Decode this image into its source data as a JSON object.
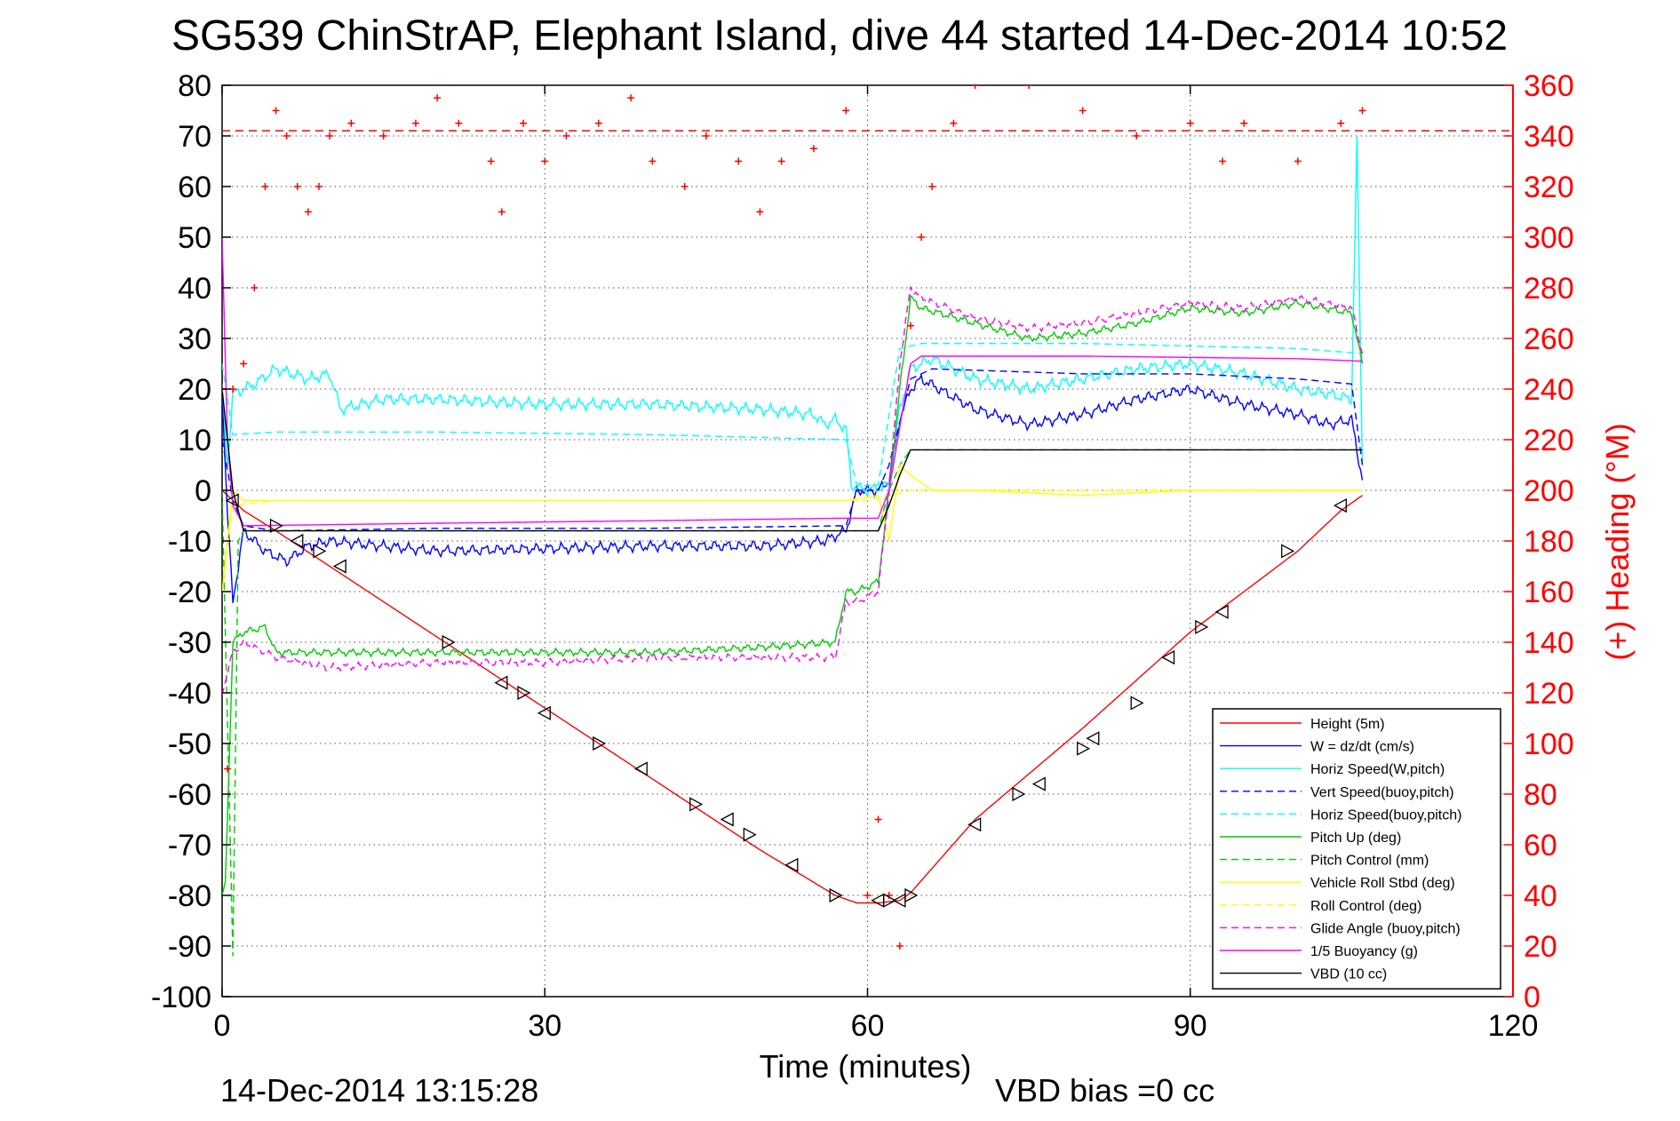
{
  "chart_data": {
    "type": "line",
    "title": "SG539 ChinStrAP, Elephant Island, dive 44 started 14-Dec-2014 10:52",
    "xlabel": "Time (minutes)",
    "ylabel_right": "(+) Heading (°M)",
    "xlim": [
      0,
      120
    ],
    "ylim": [
      -100,
      80
    ],
    "ylim_right": [
      0,
      360
    ],
    "x_ticks": [
      "0",
      "30",
      "60",
      "90",
      "120"
    ],
    "y_ticks": [
      "80",
      "70",
      "60",
      "50",
      "40",
      "30",
      "20",
      "10",
      "0",
      "-10",
      "-20",
      "-30",
      "-40",
      "-50",
      "-60",
      "-70",
      "-80",
      "-90",
      "-100"
    ],
    "y_ticks_right": [
      "360",
      "340",
      "320",
      "300",
      "280",
      "260",
      "240",
      "220",
      "200",
      "180",
      "160",
      "140",
      "120",
      "100",
      "80",
      "60",
      "40",
      "20",
      "0"
    ],
    "grid": true,
    "legend_position": "lower-right",
    "footer_left": "14-Dec-2014 13:15:28",
    "footer_right": "VBD bias =0 cc",
    "series": [
      {
        "name": "Height (5m)",
        "color": "#ff0000",
        "style": "solid",
        "x": [
          0,
          1,
          2,
          5,
          10,
          20,
          30,
          40,
          50,
          57,
          59,
          61,
          63,
          64,
          70,
          80,
          90,
          100,
          104,
          106
        ],
        "values": [
          0,
          -2,
          -4,
          -8,
          -15,
          -29,
          -43,
          -57,
          -71,
          -80,
          -81.5,
          -81.5,
          -81,
          -79.5,
          -65,
          -47,
          -28,
          -12,
          -4,
          -1
        ]
      },
      {
        "name": "W = dz/dt (cm/s)",
        "color": "#0000ff",
        "style": "solid",
        "x": [
          0,
          0.5,
          1,
          2,
          4,
          6,
          8,
          10,
          15,
          20,
          30,
          40,
          50,
          56,
          58,
          59,
          61,
          62,
          63,
          64,
          65,
          70,
          75,
          80,
          85,
          90,
          95,
          100,
          103,
          105,
          106
        ],
        "values": [
          20,
          -5,
          -22,
          -8,
          -12,
          -14,
          -11,
          -10,
          -11,
          -12,
          -11.5,
          -11,
          -11,
          -10,
          -8,
          0,
          0,
          2,
          14,
          20,
          22,
          16,
          13,
          15,
          18,
          20,
          17,
          15,
          13,
          14,
          2
        ]
      },
      {
        "name": "Horiz Speed(W,pitch)",
        "color": "#00ffff",
        "style": "solid",
        "x": [
          0,
          0.5,
          1,
          3,
          5,
          8,
          10,
          11,
          15,
          20,
          30,
          40,
          50,
          55,
          56,
          57,
          58,
          58.5,
          60,
          62,
          63,
          64,
          66,
          70,
          75,
          80,
          85,
          90,
          95,
          100,
          103,
          105,
          105.5,
          106
        ],
        "values": [
          20,
          5,
          19,
          21,
          24,
          22,
          23,
          16,
          18,
          18,
          17,
          17,
          16,
          15,
          13,
          14,
          12,
          1,
          0,
          1,
          16,
          24,
          26,
          22,
          20,
          22,
          24,
          25,
          23,
          20,
          19,
          18,
          69,
          5
        ]
      },
      {
        "name": "Vert Speed(buoy,pitch)",
        "color": "#0000ff",
        "style": "dashed",
        "x": [
          0,
          1,
          2,
          5,
          20,
          40,
          58,
          59,
          61,
          62,
          64,
          66,
          80,
          90,
          100,
          105,
          106
        ],
        "values": [
          10,
          -2,
          -7,
          -8,
          -7.5,
          -7.5,
          -7,
          0,
          0,
          5,
          22,
          24,
          23,
          23,
          22,
          21,
          5
        ]
      },
      {
        "name": "Horiz Speed(buoy,pitch)",
        "color": "#00ffff",
        "style": "dashed",
        "x": [
          0,
          1,
          5,
          20,
          40,
          58,
          59,
          61,
          62,
          63,
          65,
          80,
          100,
          106
        ],
        "values": [
          25,
          11,
          11.5,
          11.5,
          11,
          10,
          1,
          1,
          15,
          28,
          29,
          29,
          28,
          27
        ]
      },
      {
        "name": "Pitch Up (deg)",
        "color": "#00cc00",
        "style": "solid",
        "x": [
          0,
          0.3,
          1,
          2,
          4,
          5,
          10,
          20,
          30,
          40,
          50,
          57,
          58,
          59,
          61,
          62,
          63,
          64,
          65,
          70,
          75,
          80,
          85,
          90,
          95,
          100,
          105,
          106
        ],
        "values": [
          -80,
          -78,
          -30,
          -28,
          -27,
          -32,
          -32,
          -32,
          -32,
          -32,
          -31,
          -30,
          -20,
          -20,
          -18,
          0,
          20,
          38,
          36,
          33,
          30,
          31,
          33,
          36,
          35,
          37,
          35,
          25
        ]
      },
      {
        "name": "Pitch Control (mm)",
        "color": "#00cc00",
        "style": "dashed",
        "x": [
          0,
          1,
          1.5,
          2,
          4,
          60,
          61,
          62,
          63,
          64,
          65,
          106
        ],
        "values": [
          0,
          -92,
          -10,
          -8,
          -8,
          -8,
          -8,
          0,
          5,
          8,
          8,
          8
        ]
      },
      {
        "name": "Vehicle Roll Stbd (deg)",
        "color": "#ffff00",
        "style": "solid",
        "x": [
          0,
          1,
          2,
          5,
          10,
          20,
          30,
          40,
          50,
          58,
          61,
          62,
          63,
          64,
          66,
          70,
          80,
          90,
          100,
          106
        ],
        "values": [
          -20,
          0,
          -2,
          -2,
          -2,
          -2,
          -2,
          -2,
          -2,
          -2,
          -1,
          -10,
          5,
          3,
          0,
          0,
          -1,
          0,
          0,
          0
        ]
      },
      {
        "name": "Roll Control (deg)",
        "color": "#ffff00",
        "style": "dashed",
        "x": [
          0,
          1,
          5,
          20,
          40,
          60,
          64,
          80,
          106
        ],
        "values": [
          -20,
          -3,
          -2,
          -2,
          -2,
          -2,
          0,
          0,
          0
        ]
      },
      {
        "name": "Glide Angle (buoy,pitch)",
        "color": "#ff00ff",
        "style": "dashed",
        "x": [
          0,
          1,
          2,
          5,
          10,
          20,
          30,
          40,
          50,
          57,
          58,
          59,
          61,
          62,
          63,
          64,
          65,
          70,
          75,
          80,
          85,
          90,
          95,
          100,
          105,
          106
        ],
        "values": [
          -40,
          -32,
          -30,
          -33,
          -35,
          -34,
          -34,
          -33,
          -33,
          -33,
          -22,
          -22,
          -20,
          0,
          25,
          40,
          38,
          34,
          32,
          33,
          35,
          37,
          36,
          38,
          36,
          27
        ]
      },
      {
        "name": "1/5 Buoyancy (g)",
        "color": "#ff00ff",
        "style": "solid",
        "x": [
          0,
          0.5,
          1,
          2,
          20,
          40,
          58,
          61,
          62,
          64,
          65,
          80,
          100,
          106
        ],
        "values": [
          50,
          10,
          -3,
          -7,
          -6.5,
          -6,
          -5.5,
          -5.5,
          0,
          25,
          26.5,
          26.5,
          26,
          25.5
        ]
      },
      {
        "name": "VBD (10 cc)",
        "color": "#000000",
        "style": "solid",
        "x": [
          0,
          0.5,
          1,
          2,
          61,
          62,
          63,
          64,
          65,
          106
        ],
        "values": [
          20,
          10,
          0,
          -8,
          -8,
          -3,
          3,
          8,
          8,
          8
        ]
      }
    ],
    "heading_series": {
      "color": "#ff0000",
      "marker": "+",
      "x": [
        0,
        0.5,
        1,
        2,
        3,
        4,
        5,
        6,
        7,
        8,
        9,
        10,
        12,
        15,
        18,
        20,
        22,
        25,
        26,
        28,
        30,
        32,
        35,
        38,
        40,
        43,
        45,
        48,
        50,
        52,
        55,
        58,
        60,
        61,
        62,
        63,
        64,
        65,
        66,
        68,
        70,
        75,
        80,
        85,
        90,
        93,
        95,
        100,
        104,
        106
      ],
      "values": [
        240,
        90,
        240,
        250,
        280,
        320,
        350,
        340,
        320,
        310,
        320,
        340,
        345,
        340,
        345,
        355,
        345,
        330,
        310,
        345,
        330,
        340,
        345,
        355,
        330,
        320,
        340,
        330,
        310,
        330,
        335,
        350,
        40,
        70,
        40,
        20,
        265,
        300,
        320,
        345,
        360,
        360,
        350,
        340,
        345,
        330,
        345,
        330,
        345,
        350
      ]
    },
    "heading_reference": {
      "value": 342,
      "color": "#ff0000",
      "style": "dashed"
    },
    "marker_points": {
      "marker": "triangle",
      "x": [
        1,
        5,
        7,
        9,
        11,
        21,
        26,
        28,
        30,
        35,
        39,
        44,
        47,
        49,
        53,
        57,
        61,
        62,
        63,
        64,
        70,
        74,
        76,
        80,
        81,
        85,
        88,
        91,
        93,
        99,
        104
      ],
      "values": [
        -2,
        -7,
        -10,
        -12,
        -15,
        -30,
        -38,
        -40,
        -44,
        -50,
        -55,
        -62,
        -65,
        -68,
        -74,
        -80,
        -81,
        -81,
        -81,
        -80,
        -66,
        -60,
        -58,
        -51,
        -49,
        -42,
        -33,
        -27,
        -24,
        -12,
        -3
      ]
    }
  }
}
